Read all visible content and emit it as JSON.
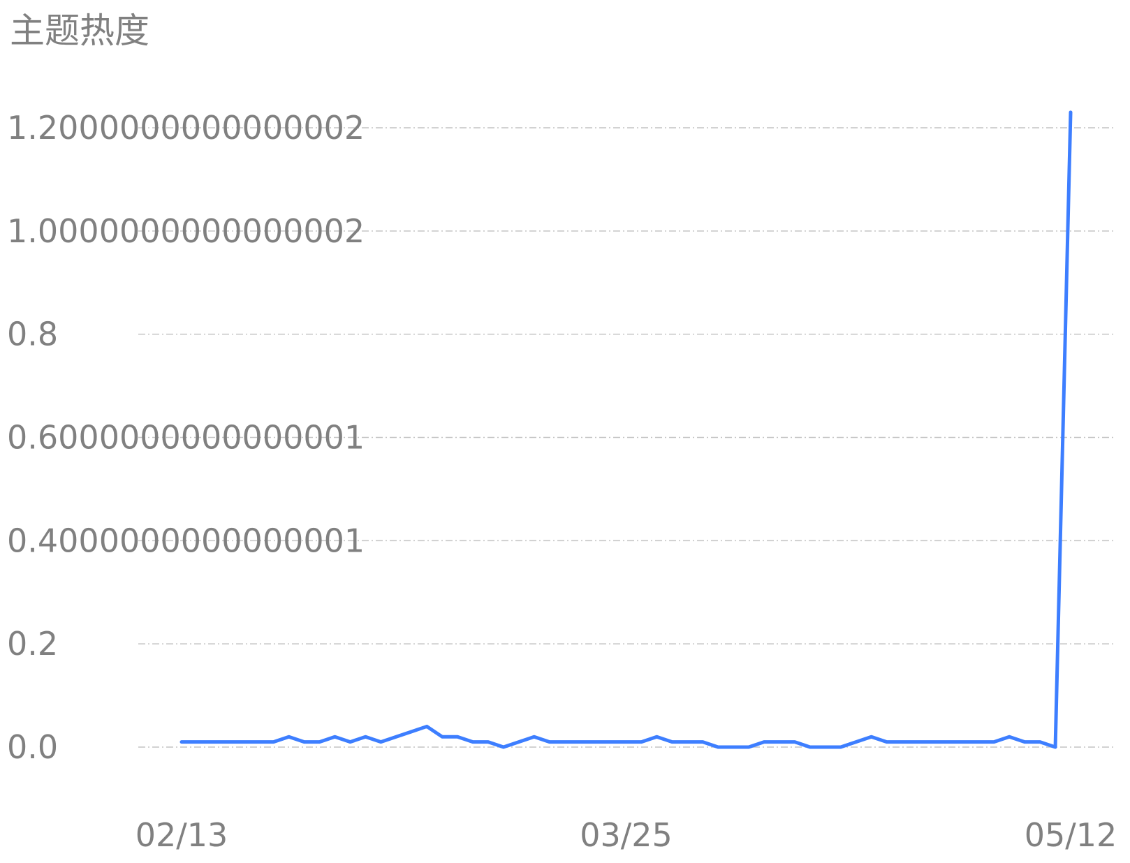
{
  "chart_data": {
    "type": "line",
    "title": "主题热度",
    "xlabel": "",
    "ylabel": "",
    "ylim": [
      0,
      1.2
    ],
    "grid": true,
    "grid_style": "dash-dot horizontal",
    "line_color": "#3d7eff",
    "text_color": "#808080",
    "grid_color": "#c4c4c4",
    "y_ticks": [
      {
        "value": 0.0,
        "label": "0.0"
      },
      {
        "value": 0.2,
        "label": "0.2"
      },
      {
        "value": 0.4,
        "label": "0.4000000000000001"
      },
      {
        "value": 0.6,
        "label": "0.6000000000000001"
      },
      {
        "value": 0.8,
        "label": "0.8"
      },
      {
        "value": 1.0,
        "label": "1.0000000000000002"
      },
      {
        "value": 1.2,
        "label": "1.2000000000000002"
      }
    ],
    "x_ticks": [
      {
        "index": 0,
        "label": "02/13"
      },
      {
        "index": 29,
        "label": "03/25"
      },
      {
        "index": 58,
        "label": "05/12"
      }
    ],
    "series": [
      {
        "values": [
          0.01,
          0.01,
          0.01,
          0.01,
          0.01,
          0.01,
          0.01,
          0.02,
          0.01,
          0.01,
          0.02,
          0.01,
          0.02,
          0.01,
          0.02,
          0.03,
          0.04,
          0.02,
          0.02,
          0.01,
          0.01,
          0.0,
          0.01,
          0.02,
          0.01,
          0.01,
          0.01,
          0.01,
          0.01,
          0.01,
          0.01,
          0.02,
          0.01,
          0.01,
          0.01,
          0.0,
          0.0,
          0.0,
          0.01,
          0.01,
          0.01,
          0.0,
          0.0,
          0.0,
          0.01,
          0.02,
          0.01,
          0.01,
          0.01,
          0.01,
          0.01,
          0.01,
          0.01,
          0.01,
          0.02,
          0.01,
          0.01,
          0.0,
          1.23
        ]
      }
    ]
  }
}
